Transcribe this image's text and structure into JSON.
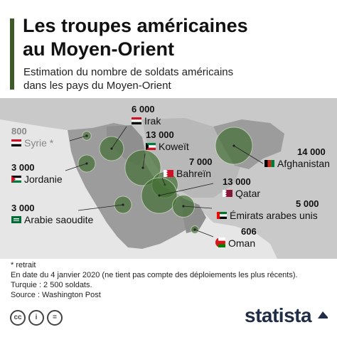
{
  "title_line1": "Les troupes américaines",
  "title_line2": "au Moyen-Orient",
  "subtitle_line1": "Estimation du nombre de soldats américains",
  "subtitle_line2": "dans les pays du Moyen-Orient",
  "colors": {
    "accent": "#3e5a2a",
    "bubble": "#3e6b2c",
    "land_highlight": "#9c9c9c",
    "land_other": "#c8c8c8",
    "sea": "#e6e6e6"
  },
  "countries": [
    {
      "number": "800",
      "name": "Syrie",
      "mark": "*",
      "flag": "syria-flag",
      "troops": 800
    },
    {
      "number": "6 000",
      "name": "Irak",
      "flag": "iraq-flag",
      "troops": 6000
    },
    {
      "number": "3 000",
      "name": "Jordanie",
      "flag": "jordan-flag",
      "troops": 3000
    },
    {
      "number": "13 000",
      "name": "Koweït",
      "flag": "kuwait-flag",
      "troops": 13000
    },
    {
      "number": "7 000",
      "name": "Bahreïn",
      "flag": "bahrain-flag",
      "troops": 7000
    },
    {
      "number": "14 000",
      "name": "Afghanistan",
      "flag": "afghanistan-flag",
      "troops": 14000
    },
    {
      "number": "13 000",
      "name": "Qatar",
      "flag": "qatar-flag",
      "troops": 13000
    },
    {
      "number": "3 000",
      "name": "Arabie saoudite",
      "flag": "saudi-arabia-flag",
      "troops": 3000
    },
    {
      "number": "5 000",
      "name": "Émirats arabes unis",
      "flag": "uae-flag",
      "troops": 5000
    },
    {
      "number": "606",
      "name": "Oman",
      "flag": "oman-flag",
      "troops": 606
    }
  ],
  "footer": {
    "note": "* retrait",
    "date": "En date du 4 janvier 2020 (ne tient pas compte des déploiements les plus récents).",
    "turkey": "Turquie : 2 500 soldats.",
    "source": "Source : Washington Post"
  },
  "license_icons": [
    "cc",
    "i",
    "="
  ],
  "brand": "statista"
}
